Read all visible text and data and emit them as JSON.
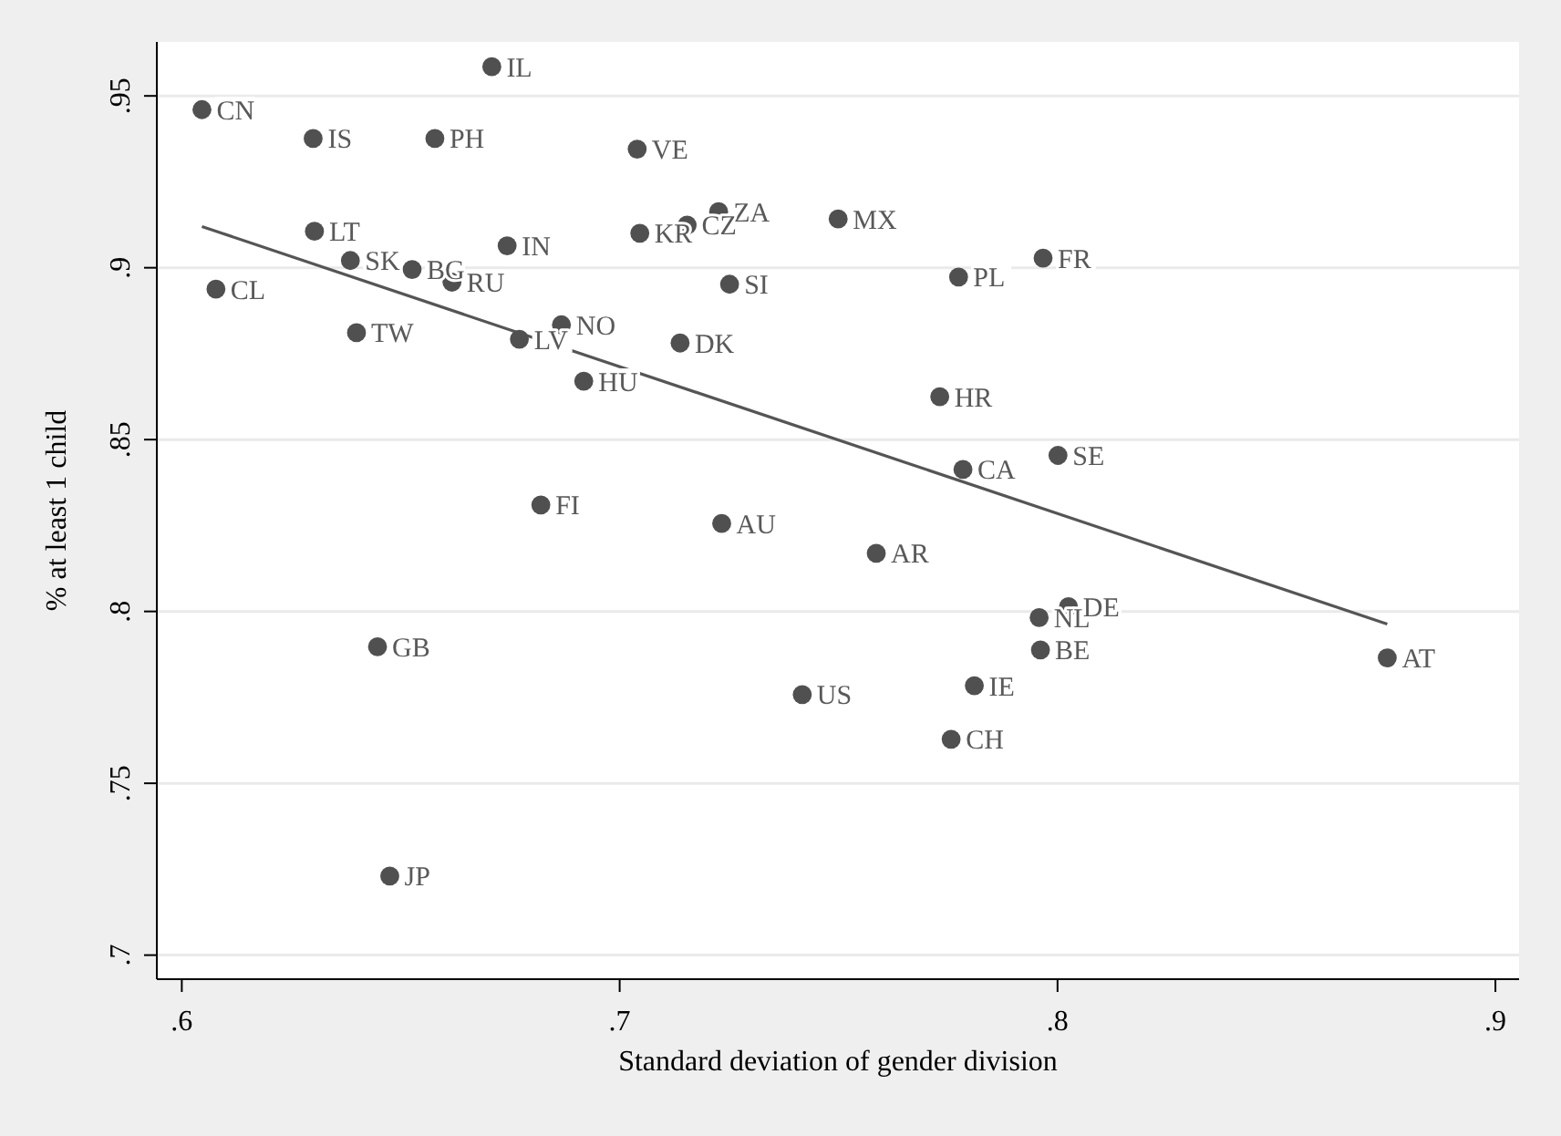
{
  "chart_data": {
    "type": "scatter",
    "xlabel": "Standard deviation of gender division",
    "ylabel": "% at least 1 child",
    "xlim": [
      0.5943,
      0.9054
    ],
    "ylim": [
      0.693,
      0.9657
    ],
    "xticks": [
      {
        "value": 0.6,
        "label": ".6"
      },
      {
        "value": 0.7,
        "label": ".7"
      },
      {
        "value": 0.8,
        "label": ".8"
      },
      {
        "value": 0.9,
        "label": ".9"
      }
    ],
    "yticks": [
      {
        "value": 0.7,
        "label": ".7"
      },
      {
        "value": 0.75,
        "label": ".75"
      },
      {
        "value": 0.8,
        "label": ".8"
      },
      {
        "value": 0.85,
        "label": ".85"
      },
      {
        "value": 0.9,
        "label": ".9"
      },
      {
        "value": 0.95,
        "label": ".95"
      }
    ],
    "grid": "y",
    "series": [
      {
        "marker": "circle",
        "color": "#505050",
        "x": [
          0.6046,
          0.63,
          0.6578,
          0.6708,
          0.704,
          0.7226,
          0.7154,
          0.7046,
          0.6303,
          0.6743,
          0.6385,
          0.6526,
          0.6617,
          0.6078,
          0.7251,
          0.6399,
          0.6867,
          0.6771,
          0.7138,
          0.6918,
          0.682,
          0.7233,
          0.7499,
          0.7774,
          0.7967,
          0.7731,
          0.7784,
          0.8001,
          0.7586,
          0.6447,
          0.6475,
          0.8025,
          0.7958,
          0.7961,
          0.8753,
          0.7417,
          0.781,
          0.7757
        ],
        "values": [
          0.946,
          0.9376,
          0.9376,
          0.9585,
          0.9345,
          0.9163,
          0.9124,
          0.91,
          0.9106,
          0.9064,
          0.9021,
          0.8995,
          0.8958,
          0.8938,
          0.8952,
          0.8811,
          0.8834,
          0.8792,
          0.8781,
          0.867,
          0.831,
          0.8256,
          0.9142,
          0.8973,
          0.9028,
          0.8625,
          0.8413,
          0.8454,
          0.8169,
          0.7897,
          0.723,
          0.8014,
          0.7982,
          0.7888,
          0.7865,
          0.7758,
          0.7784,
          0.7628
        ],
        "value_labels": [
          "CN",
          "IS",
          "PH",
          "IL",
          "VE",
          "ZA",
          "CZ",
          "KR",
          "LT",
          "IN",
          "SK",
          "BG",
          "RU",
          "CL",
          "SI",
          "TW",
          "NO",
          "LV",
          "DK",
          "HU",
          "FI",
          "AU",
          "MX",
          "PL",
          "FR",
          "HR",
          "CA",
          "SE",
          "AR",
          "GB",
          "JP",
          "DE",
          "NL",
          "BE",
          "AT",
          "US",
          "IE",
          "CH"
        ]
      },
      {
        "type": "line",
        "color": "#555555",
        "x": [
          0.6046,
          0.8753
        ],
        "values": [
          0.912,
          0.7963
        ]
      }
    ]
  }
}
